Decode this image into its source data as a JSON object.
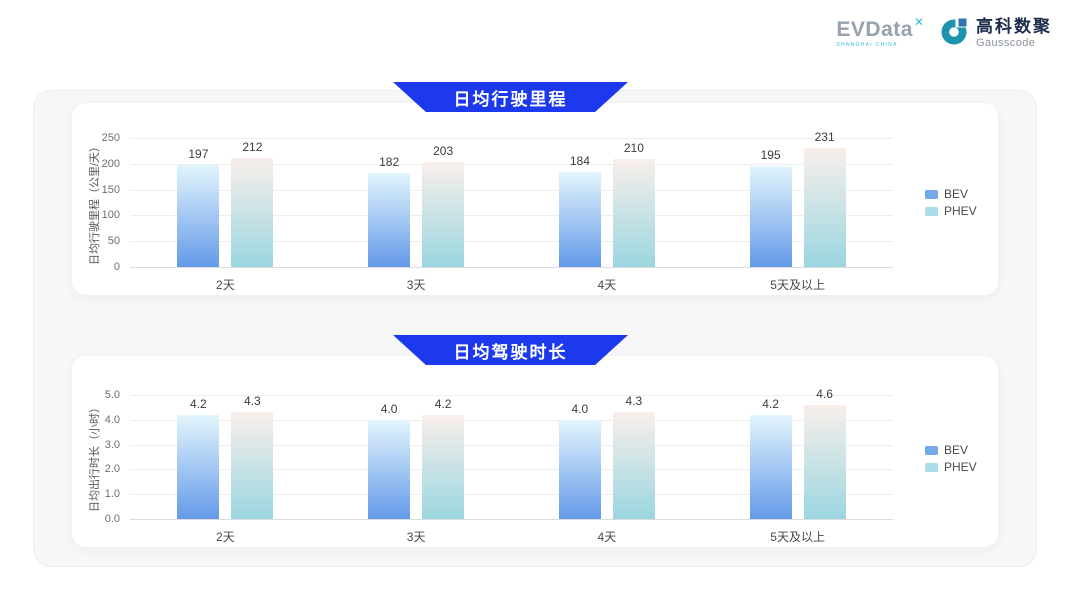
{
  "brand": {
    "evdata_text": "EVData",
    "evdata_mark": "✕",
    "evdata_tagline": "SHANGHAI CHINA",
    "gausscode_cn": "高科数聚",
    "gausscode_en": "Gausscode"
  },
  "chart_data": [
    {
      "type": "bar",
      "title": "日均行驶里程",
      "categories": [
        "2天",
        "3天",
        "4天",
        "5天及以上"
      ],
      "series": [
        {
          "name": "BEV",
          "values": [
            197,
            182,
            184,
            195
          ]
        },
        {
          "name": "PHEV",
          "values": [
            212,
            203,
            210,
            231
          ]
        }
      ],
      "xlabel": "",
      "ylabel": "日均行驶里程（公里/天）",
      "ylim": [
        0,
        250
      ],
      "ytick_labels": [
        "250",
        "200",
        "150",
        "100",
        "50",
        "0"
      ],
      "decimals": 0,
      "grid": true,
      "legend_position": "right"
    },
    {
      "type": "bar",
      "title": "日均驾驶时长",
      "categories": [
        "2天",
        "3天",
        "4天",
        "5天及以上"
      ],
      "series": [
        {
          "name": "BEV",
          "values": [
            4.2,
            4.0,
            4.0,
            4.2
          ]
        },
        {
          "name": "PHEV",
          "values": [
            4.3,
            4.2,
            4.3,
            4.6
          ]
        }
      ],
      "xlabel": "",
      "ylabel": "日均出行时长（小时）",
      "ylim": [
        0,
        5
      ],
      "ytick_labels": [
        "5.0",
        "4.0",
        "3.0",
        "2.0",
        "1.0",
        "0.0"
      ],
      "decimals": 1,
      "grid": true,
      "legend_position": "right"
    }
  ],
  "colors": {
    "banner_blue": "#1c39ee",
    "series_styles": [
      {
        "name": "BEV",
        "gradient_top": "#e3f5fc",
        "gradient_bottom": "#649ae9",
        "legend": "#74a9e9"
      },
      {
        "name": "PHEV",
        "gradient_top": "#f9efeb",
        "gradient_bottom": "#9bd6e0",
        "legend": "#a9dbe8"
      }
    ],
    "evdata_gray": "#97a2ae",
    "evdata_cyan": "#35bede",
    "gausscode_navy": "#1d2c4b",
    "gausscode_teal": "#1d94ad",
    "gausscode_square_blue": "#2e74b5"
  }
}
